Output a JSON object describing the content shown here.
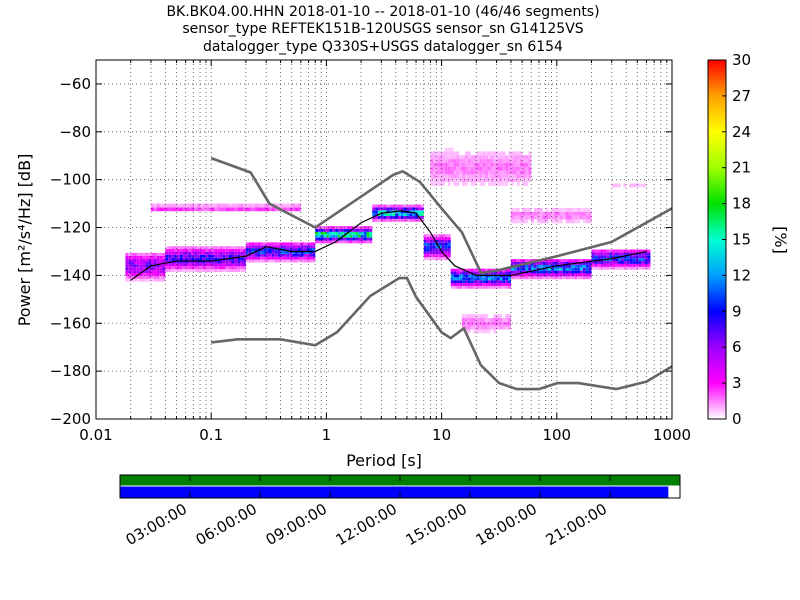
{
  "chart_data": [
    {
      "type": "heatmap",
      "title_lines": [
        "BK.BK04.00.HHN   2018-01-10 -- 2018-01-10  (46/46 segments)",
        "sensor_type REFTEK151B-120USGS sensor_sn G14125VS",
        "datalogger_type Q330S+USGS datalogger_sn 6154"
      ],
      "xlabel": "Period [s]",
      "ylabel": "Power [m²/s⁴/Hz] [dB]",
      "x_scale": "log",
      "xlim": [
        0.01,
        1000
      ],
      "ylim": [
        -200,
        -50
      ],
      "x_ticks": [
        {
          "value": 0.01,
          "label": "0.01"
        },
        {
          "value": 0.1,
          "label": "0.1"
        },
        {
          "value": 1,
          "label": "1"
        },
        {
          "value": 10,
          "label": "10"
        },
        {
          "value": 100,
          "label": "100"
        },
        {
          "value": 1000,
          "label": "1000"
        }
      ],
      "y_ticks": [
        {
          "value": -60,
          "label": "−60"
        },
        {
          "value": -80,
          "label": "−80"
        },
        {
          "value": -100,
          "label": "−100"
        },
        {
          "value": -120,
          "label": "−120"
        },
        {
          "value": -140,
          "label": "−140"
        },
        {
          "value": -160,
          "label": "−160"
        },
        {
          "value": -180,
          "label": "−180"
        },
        {
          "value": -200,
          "label": "−200"
        }
      ],
      "grid": true,
      "grid_style": "dotted",
      "colors": {
        "nlnm_nhnm": "#666666",
        "mean_line": "#000000"
      },
      "colormap": "pqlx",
      "colorbar": {
        "label": "[%]",
        "range": [
          0,
          30
        ],
        "ticks": [
          {
            "value": 0,
            "label": "0"
          },
          {
            "value": 3,
            "label": "3"
          },
          {
            "value": 6,
            "label": "6"
          },
          {
            "value": 9,
            "label": "9"
          },
          {
            "value": 12,
            "label": "12"
          },
          {
            "value": 15,
            "label": "15"
          },
          {
            "value": 18,
            "label": "18"
          },
          {
            "value": 21,
            "label": "21"
          },
          {
            "value": 24,
            "label": "24"
          },
          {
            "value": 27,
            "label": "27"
          },
          {
            "value": 30,
            "label": "30"
          }
        ],
        "stops": [
          "#ffffff",
          "#ff00ff",
          "#9c00ff",
          "#0000ff",
          "#00a0ff",
          "#00ffd0",
          "#00e000",
          "#a0ff00",
          "#ffff00",
          "#ffa000",
          "#ff0000"
        ]
      },
      "reference_curves": {
        "nhnm": [
          [
            0.1,
            -91
          ],
          [
            0.22,
            -97
          ],
          [
            0.32,
            -110
          ],
          [
            0.8,
            -120
          ],
          [
            3.8,
            -98
          ],
          [
            4.6,
            -96.5
          ],
          [
            6.5,
            -101
          ],
          [
            10,
            -112
          ],
          [
            15,
            -122
          ],
          [
            22,
            -139
          ],
          [
            30,
            -138
          ],
          [
            100,
            -132
          ],
          [
            300,
            -126
          ],
          [
            1000,
            -112
          ]
        ],
        "nlnm": [
          [
            0.1,
            -168
          ],
          [
            0.17,
            -166.7
          ],
          [
            0.4,
            -166.7
          ],
          [
            0.8,
            -169.2
          ],
          [
            1.24,
            -163.7
          ],
          [
            2.4,
            -148.6
          ],
          [
            4.3,
            -141.1
          ],
          [
            5,
            -141.1
          ],
          [
            6,
            -149
          ],
          [
            10,
            -163.8
          ],
          [
            12,
            -166.2
          ],
          [
            15.6,
            -162.1
          ],
          [
            21.9,
            -177.5
          ],
          [
            31.6,
            -185
          ],
          [
            45,
            -187.5
          ],
          [
            70,
            -187.5
          ],
          [
            101,
            -185
          ],
          [
            154,
            -185
          ],
          [
            328,
            -187.5
          ],
          [
            600,
            -184.4
          ],
          [
            1000,
            -178
          ]
        ]
      },
      "mean_curve": [
        [
          0.02,
          -142
        ],
        [
          0.03,
          -136
        ],
        [
          0.05,
          -134
        ],
        [
          0.1,
          -134
        ],
        [
          0.2,
          -132
        ],
        [
          0.3,
          -128
        ],
        [
          0.5,
          -130
        ],
        [
          0.8,
          -130
        ],
        [
          1.2,
          -126
        ],
        [
          2,
          -118
        ],
        [
          3,
          -114
        ],
        [
          4.5,
          -113
        ],
        [
          6,
          -114
        ],
        [
          8,
          -122
        ],
        [
          10,
          -130
        ],
        [
          13,
          -136
        ],
        [
          20,
          -140
        ],
        [
          40,
          -140
        ],
        [
          100,
          -136
        ],
        [
          300,
          -133
        ],
        [
          600,
          -130
        ]
      ],
      "density_bands": [
        {
          "from": 0.018,
          "to": 0.04,
          "center": -136,
          "spread": 6,
          "peak_pct": 8
        },
        {
          "from": 0.04,
          "to": 0.2,
          "center": -133,
          "spread": 5,
          "peak_pct": 10
        },
        {
          "from": 0.2,
          "to": 0.8,
          "center": -130,
          "spread": 4,
          "peak_pct": 12
        },
        {
          "from": 0.8,
          "to": 2.5,
          "center": -123,
          "spread": 3,
          "peak_pct": 20
        },
        {
          "from": 2.5,
          "to": 7,
          "center": -114,
          "spread": 3,
          "peak_pct": 18
        },
        {
          "from": 7,
          "to": 12,
          "center": -128,
          "spread": 5,
          "peak_pct": 12
        },
        {
          "from": 12,
          "to": 40,
          "center": -141,
          "spread": 4,
          "peak_pct": 14
        },
        {
          "from": 40,
          "to": 200,
          "center": -137,
          "spread": 4,
          "peak_pct": 14
        },
        {
          "from": 200,
          "to": 650,
          "center": -133,
          "spread": 4,
          "peak_pct": 12
        }
      ],
      "outlier_branches": [
        {
          "from": 0.03,
          "to": 0.6,
          "center": -112,
          "spread": 2,
          "peak_pct": 3
        },
        {
          "from": 8,
          "to": 60,
          "center": -95,
          "spread": 10,
          "peak_pct": 2
        },
        {
          "from": 15,
          "to": 40,
          "center": -160,
          "spread": 5,
          "peak_pct": 2
        },
        {
          "from": 40,
          "to": 200,
          "center": -115,
          "spread": 4,
          "peak_pct": 2
        },
        {
          "from": 300,
          "to": 600,
          "center": -103,
          "spread": 1,
          "peak_pct": 2
        }
      ]
    },
    {
      "type": "timeline",
      "tick_labels": [
        "03:00:00",
        "06:00:00",
        "09:00:00",
        "12:00:00",
        "15:00:00",
        "18:00:00",
        "21:00:00"
      ],
      "tick_hours": [
        3,
        6,
        9,
        12,
        15,
        18,
        21
      ],
      "range_hours": [
        0,
        24
      ],
      "rows": [
        {
          "color": "#008000",
          "covered": [
            [
              0,
              24
            ]
          ]
        },
        {
          "color": "#0000ff",
          "covered": [
            [
              0,
              23.5
            ]
          ]
        }
      ]
    }
  ]
}
